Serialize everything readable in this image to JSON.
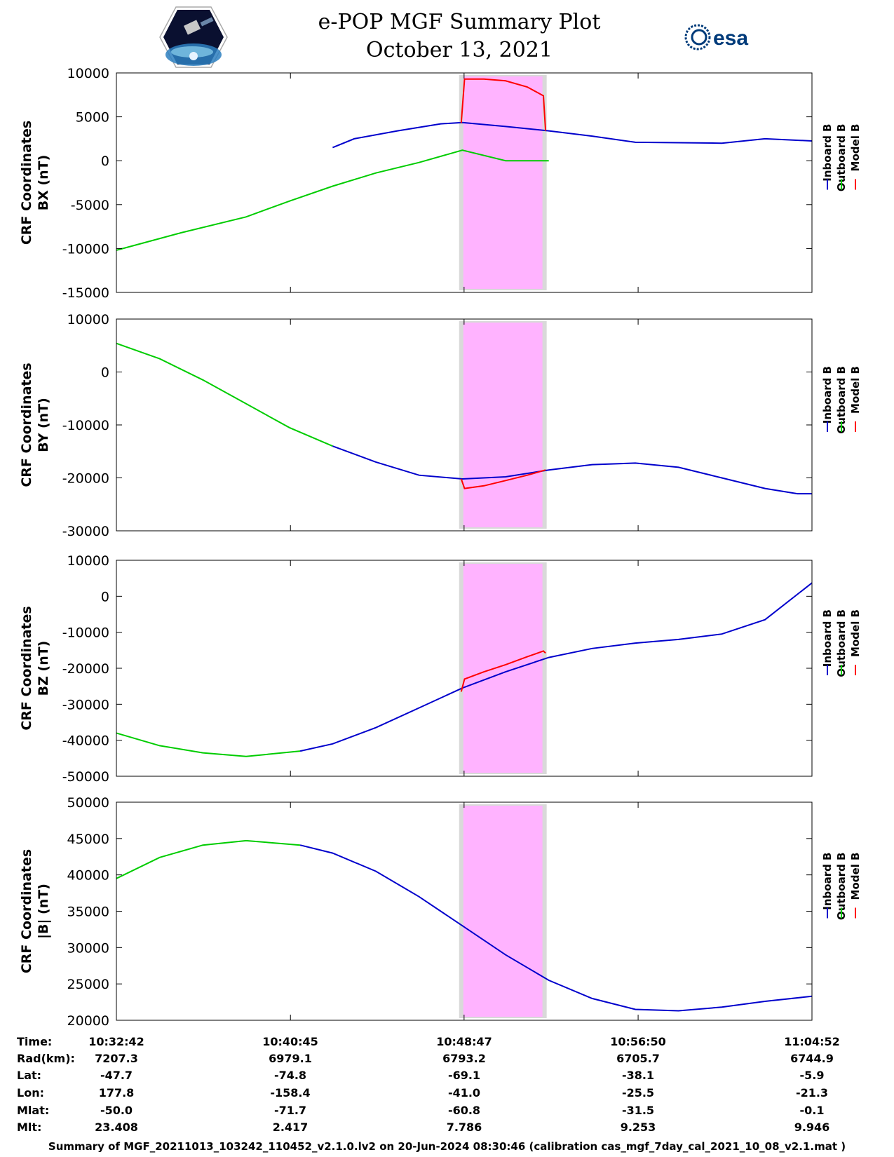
{
  "header": {
    "title": "e-POP MGF Summary Plot",
    "subtitle": "October 13, 2021",
    "logo_left": "CASSIOPE",
    "logo_right": "esa"
  },
  "legend_labels": [
    "Inboard B",
    "Outboard B",
    "Model B"
  ],
  "colors": {
    "inboard": "#0000cc",
    "outboard": "#00cc00",
    "model": "#ff0000",
    "highlight": "#ffb3ff",
    "highlight_border": "#d9d9d9"
  },
  "highlight_range": {
    "start_min": 15.85,
    "end_min": 19.9
  },
  "chart_data": [
    {
      "type": "line",
      "ylabel": "CRF Coordinates\nBX (nT)",
      "ylabel_lines": [
        "CRF Coordinates",
        "BX (nT)"
      ],
      "ylim": [
        -15000,
        10000
      ],
      "yticks": [
        -15000,
        -10000,
        -5000,
        0,
        5000,
        10000
      ],
      "xlim_min": [
        0,
        32.17
      ],
      "series": [
        {
          "name": "Outboard B",
          "x": [
            0,
            3,
            6,
            8,
            10,
            12,
            14,
            16,
            18,
            20
          ],
          "y": [
            -10200,
            -8200,
            -6400,
            -4600,
            -2900,
            -1400,
            -200,
            1200,
            0,
            0
          ]
        },
        {
          "name": "Inboard B",
          "x": [
            10,
            11,
            13,
            15,
            16,
            18,
            20,
            22,
            24,
            26,
            28,
            30,
            32.17
          ],
          "y": [
            1500,
            2500,
            3400,
            4200,
            4350,
            3900,
            3400,
            2800,
            2100,
            2050,
            2000,
            2500,
            2250
          ]
        },
        {
          "name": "Model B",
          "x": [
            15.95,
            16.1,
            17,
            18,
            19,
            19.75,
            19.85
          ],
          "y": [
            4300,
            9300,
            9300,
            9100,
            8400,
            7400,
            3400
          ]
        }
      ]
    },
    {
      "type": "line",
      "ylabel": "CRF Coordinates\nBY (nT)",
      "ylabel_lines": [
        "CRF Coordinates",
        "BY (nT)"
      ],
      "ylim": [
        -30000,
        10000
      ],
      "yticks": [
        -30000,
        -20000,
        -10000,
        0,
        10000
      ],
      "xlim_min": [
        0,
        32.17
      ],
      "series": [
        {
          "name": "Outboard B",
          "x": [
            0,
            2,
            4,
            6,
            8,
            10
          ],
          "y": [
            5400,
            2500,
            -1500,
            -6000,
            -10500,
            -14000
          ]
        },
        {
          "name": "Inboard B",
          "x": [
            10,
            12,
            14,
            16,
            18,
            20,
            22,
            24,
            26,
            28,
            30,
            31.5,
            32.17
          ],
          "y": [
            -14000,
            -17000,
            -19500,
            -20200,
            -19800,
            -18500,
            -17500,
            -17200,
            -18000,
            -20000,
            -22000,
            -23000,
            -23000
          ]
        },
        {
          "name": "Model B",
          "x": [
            15.95,
            16.1,
            17,
            18,
            19,
            19.85
          ],
          "y": [
            -20200,
            -22000,
            -21500,
            -20500,
            -19500,
            -18500
          ]
        }
      ]
    },
    {
      "type": "line",
      "ylabel": "CRF Coordinates\nBZ (nT)",
      "ylabel_lines": [
        "CRF Coordinates",
        "BZ (nT)"
      ],
      "ylim": [
        -50000,
        10000
      ],
      "yticks": [
        -50000,
        -40000,
        -30000,
        -20000,
        -10000,
        0,
        10000
      ],
      "xlim_min": [
        0,
        32.17
      ],
      "series": [
        {
          "name": "Outboard B",
          "x": [
            0,
            2,
            4,
            6,
            8.5
          ],
          "y": [
            -38000,
            -41500,
            -43500,
            -44500,
            -43000
          ]
        },
        {
          "name": "Inboard B",
          "x": [
            8.5,
            10,
            12,
            14,
            16,
            18,
            20,
            22,
            24,
            26,
            28,
            30,
            32.17
          ],
          "y": [
            -43000,
            -41000,
            -36500,
            -31000,
            -25500,
            -21000,
            -17000,
            -14500,
            -13000,
            -12000,
            -10500,
            -6500,
            3700
          ]
        },
        {
          "name": "Model B",
          "x": [
            15.95,
            16.1,
            17,
            18,
            19,
            19.75,
            19.85
          ],
          "y": [
            -26500,
            -23000,
            -21000,
            -19000,
            -16800,
            -15200,
            -15800
          ]
        }
      ]
    },
    {
      "type": "line",
      "ylabel": "CRF Coordinates\n|B| (nT)",
      "ylabel_lines": [
        "CRF Coordinates",
        "|B| (nT)"
      ],
      "ylim": [
        20000,
        50000
      ],
      "yticks": [
        20000,
        25000,
        30000,
        35000,
        40000,
        45000,
        50000
      ],
      "xlim_min": [
        0,
        32.17
      ],
      "series": [
        {
          "name": "Outboard B",
          "x": [
            0,
            2,
            4,
            6,
            8.5
          ],
          "y": [
            39500,
            42400,
            44100,
            44700,
            44100
          ]
        },
        {
          "name": "Inboard B",
          "x": [
            8.5,
            10,
            12,
            14,
            16,
            18,
            20,
            22,
            24,
            26,
            28,
            30,
            32.17
          ],
          "y": [
            44100,
            43000,
            40500,
            37000,
            33000,
            29000,
            25500,
            23000,
            21500,
            21300,
            21800,
            22600,
            23300
          ]
        }
      ]
    }
  ],
  "table": {
    "row_labels": [
      "Time:",
      "Rad(km):",
      "Lat:",
      "Lon:",
      "Mlat:",
      "Mlt:"
    ],
    "columns": [
      [
        "10:32:42",
        "7207.3",
        "-47.7",
        "177.8",
        "-50.0",
        "23.408"
      ],
      [
        "10:40:45",
        "6979.1",
        "-74.8",
        "-158.4",
        "-71.7",
        "2.417"
      ],
      [
        "10:48:47",
        "6793.2",
        "-69.1",
        "-41.0",
        "-60.8",
        "7.786"
      ],
      [
        "10:56:50",
        "6705.7",
        "-38.1",
        "-25.5",
        "-31.5",
        "9.253"
      ],
      [
        "11:04:52",
        "6744.9",
        "-5.9",
        "-21.3",
        "-0.1",
        "9.946"
      ]
    ]
  },
  "footer": "Summary of MGF_20211013_103242_110452_v2.1.0.lv2 on 20-Jun-2024 08:30:46 (calibration cas_mgf_7day_cal_2021_10_08_v2.1.mat )"
}
